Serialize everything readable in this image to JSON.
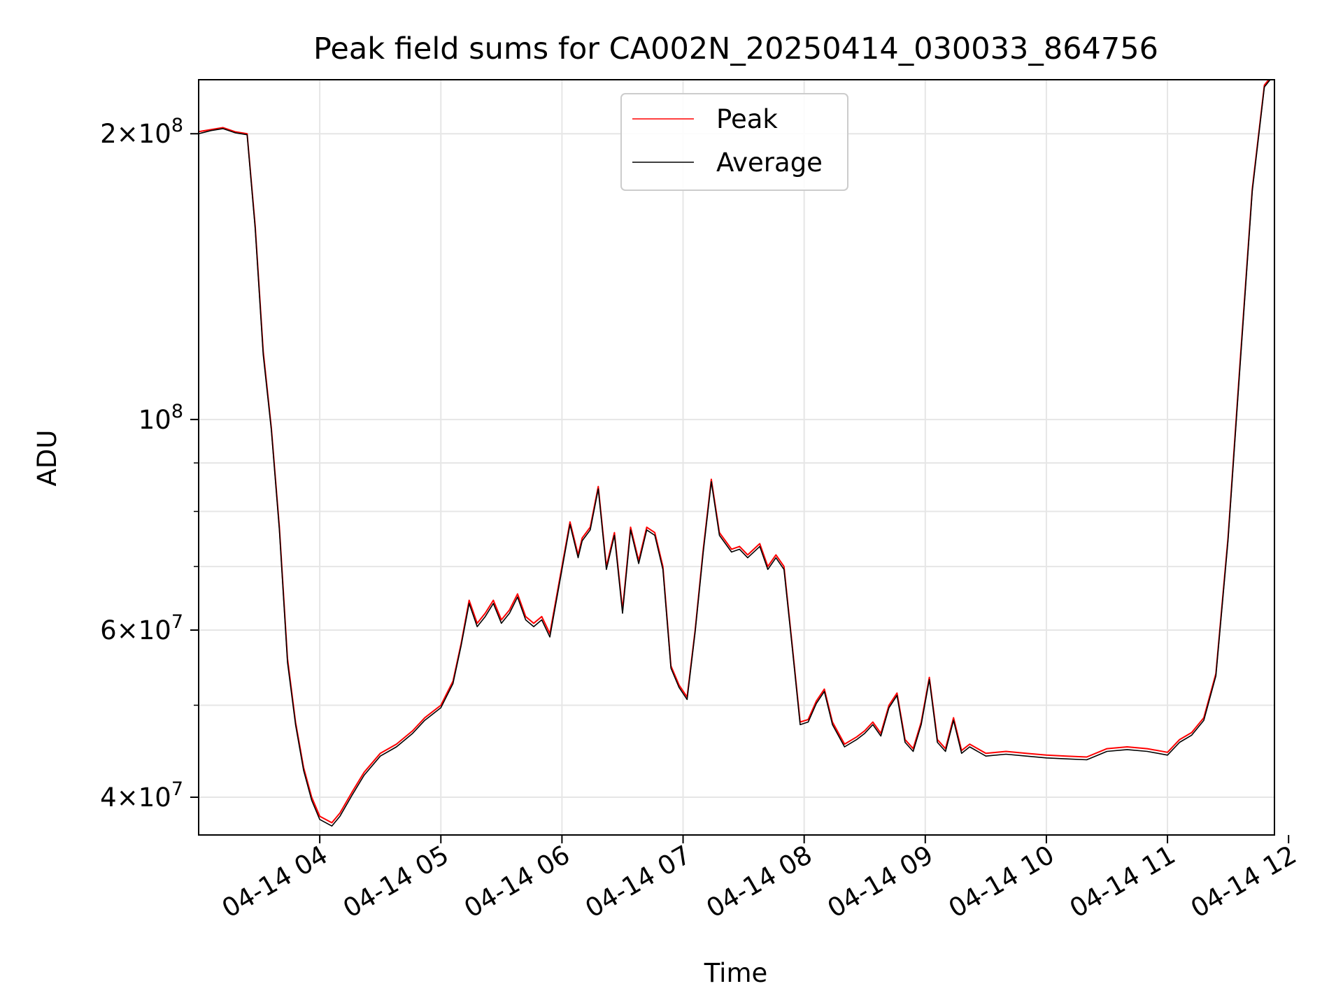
{
  "colors": {
    "peak": "#ff0000",
    "average": "#000000",
    "grid": "#e6e6e6",
    "frame": "#000000"
  },
  "chart_data": {
    "type": "line",
    "title": "Peak field sums for CA002N_20250414_030033_864756",
    "xlabel": "Time",
    "ylabel": "ADU",
    "y_scale": "log",
    "grid": true,
    "legend_placement": "top-center",
    "xlim": [
      "2025-04-14 03:00",
      "2025-04-14 11:53"
    ],
    "ylim": [
      36500000,
      228000000
    ],
    "x_ticks": [
      {
        "value": "2025-04-14 04:00",
        "label": "04-14 04"
      },
      {
        "value": "2025-04-14 05:00",
        "label": "04-14 05"
      },
      {
        "value": "2025-04-14 06:00",
        "label": "04-14 06"
      },
      {
        "value": "2025-04-14 07:00",
        "label": "04-14 07"
      },
      {
        "value": "2025-04-14 08:00",
        "label": "04-14 08"
      },
      {
        "value": "2025-04-14 09:00",
        "label": "04-14 09"
      },
      {
        "value": "2025-04-14 10:00",
        "label": "04-14 10"
      },
      {
        "value": "2025-04-14 11:00",
        "label": "04-14 11"
      },
      {
        "value": "2025-04-14 12:00",
        "label": "04-14 12"
      }
    ],
    "y_major_ticks": [
      {
        "value": 40000000,
        "mant": "4",
        "exp": "7"
      },
      {
        "value": 60000000,
        "mant": "6",
        "exp": "7"
      },
      {
        "value": 100000000,
        "mant": "",
        "exp": "8"
      },
      {
        "value": 200000000,
        "mant": "2",
        "exp": "8"
      }
    ],
    "y_minor_ticks": [
      50000000,
      70000000,
      80000000,
      90000000
    ],
    "series": [
      {
        "name": "Peak",
        "color": "#ff0000",
        "x": [
          "2025-04-14 03:00",
          "2025-04-14 03:06",
          "2025-04-14 03:12",
          "2025-04-14 03:18",
          "2025-04-14 03:24",
          "2025-04-14 03:28",
          "2025-04-14 03:32",
          "2025-04-14 03:36",
          "2025-04-14 03:40",
          "2025-04-14 03:44",
          "2025-04-14 03:48",
          "2025-04-14 03:52",
          "2025-04-14 03:56",
          "2025-04-14 04:00",
          "2025-04-14 04:06",
          "2025-04-14 04:10",
          "2025-04-14 04:16",
          "2025-04-14 04:22",
          "2025-04-14 04:30",
          "2025-04-14 04:38",
          "2025-04-14 04:46",
          "2025-04-14 04:52",
          "2025-04-14 05:00",
          "2025-04-14 05:06",
          "2025-04-14 05:10",
          "2025-04-14 05:14",
          "2025-04-14 05:18",
          "2025-04-14 05:22",
          "2025-04-14 05:26",
          "2025-04-14 05:30",
          "2025-04-14 05:34",
          "2025-04-14 05:38",
          "2025-04-14 05:42",
          "2025-04-14 05:46",
          "2025-04-14 05:50",
          "2025-04-14 05:54",
          "2025-04-14 06:00",
          "2025-04-14 06:04",
          "2025-04-14 06:08",
          "2025-04-14 06:10",
          "2025-04-14 06:14",
          "2025-04-14 06:18",
          "2025-04-14 06:22",
          "2025-04-14 06:26",
          "2025-04-14 06:30",
          "2025-04-14 06:34",
          "2025-04-14 06:38",
          "2025-04-14 06:42",
          "2025-04-14 06:46",
          "2025-04-14 06:50",
          "2025-04-14 06:54",
          "2025-04-14 06:58",
          "2025-04-14 07:02",
          "2025-04-14 07:06",
          "2025-04-14 07:10",
          "2025-04-14 07:14",
          "2025-04-14 07:18",
          "2025-04-14 07:24",
          "2025-04-14 07:28",
          "2025-04-14 07:32",
          "2025-04-14 07:38",
          "2025-04-14 07:42",
          "2025-04-14 07:46",
          "2025-04-14 07:50",
          "2025-04-14 07:54",
          "2025-04-14 07:58",
          "2025-04-14 08:02",
          "2025-04-14 08:06",
          "2025-04-14 08:10",
          "2025-04-14 08:14",
          "2025-04-14 08:20",
          "2025-04-14 08:26",
          "2025-04-14 08:30",
          "2025-04-14 08:34",
          "2025-04-14 08:38",
          "2025-04-14 08:42",
          "2025-04-14 08:46",
          "2025-04-14 08:50",
          "2025-04-14 08:54",
          "2025-04-14 08:58",
          "2025-04-14 09:02",
          "2025-04-14 09:06",
          "2025-04-14 09:10",
          "2025-04-14 09:14",
          "2025-04-14 09:18",
          "2025-04-14 09:22",
          "2025-04-14 09:30",
          "2025-04-14 09:40",
          "2025-04-14 09:50",
          "2025-04-14 10:00",
          "2025-04-14 10:10",
          "2025-04-14 10:20",
          "2025-04-14 10:30",
          "2025-04-14 10:40",
          "2025-04-14 10:50",
          "2025-04-14 11:00",
          "2025-04-14 11:06",
          "2025-04-14 11:12",
          "2025-04-14 11:18",
          "2025-04-14 11:24",
          "2025-04-14 11:30",
          "2025-04-14 11:36",
          "2025-04-14 11:42",
          "2025-04-14 11:48",
          "2025-04-14 11:53"
        ],
        "y": [
          201000000,
          202000000,
          203000000,
          201000000,
          200000000,
          160000000,
          118000000,
          98000000,
          77000000,
          56000000,
          48000000,
          43000000,
          40000000,
          38200000,
          37600000,
          38500000,
          40500000,
          42500000,
          44500000,
          45500000,
          47000000,
          48500000,
          50000000,
          53000000,
          58000000,
          64500000,
          61000000,
          62500000,
          64500000,
          61500000,
          63000000,
          65500000,
          62000000,
          61000000,
          62000000,
          59500000,
          70000000,
          78000000,
          72000000,
          75000000,
          77000000,
          85000000,
          70000000,
          76000000,
          63000000,
          77000000,
          71000000,
          77000000,
          76000000,
          70000000,
          55000000,
          52500000,
          51000000,
          60000000,
          73000000,
          86500000,
          76000000,
          73000000,
          73500000,
          72000000,
          74000000,
          70000000,
          72000000,
          70000000,
          58000000,
          48000000,
          48300000,
          50500000,
          52000000,
          48000000,
          45500000,
          46300000,
          47000000,
          48000000,
          46700000,
          50000000,
          51500000,
          46000000,
          45000000,
          48000000,
          53500000,
          46000000,
          45000000,
          48500000,
          44800000,
          45500000,
          44500000,
          44700000,
          44500000,
          44300000,
          44200000,
          44100000,
          45000000,
          45200000,
          45000000,
          44600000,
          46000000,
          46800000,
          48500000,
          54000000,
          75000000,
          115000000,
          175000000,
          225000000,
          232000000
        ]
      },
      {
        "name": "Average",
        "color": "#000000",
        "x": [
          "2025-04-14 03:00",
          "2025-04-14 03:06",
          "2025-04-14 03:12",
          "2025-04-14 03:18",
          "2025-04-14 03:24",
          "2025-04-14 03:28",
          "2025-04-14 03:32",
          "2025-04-14 03:36",
          "2025-04-14 03:40",
          "2025-04-14 03:44",
          "2025-04-14 03:48",
          "2025-04-14 03:52",
          "2025-04-14 03:56",
          "2025-04-14 04:00",
          "2025-04-14 04:06",
          "2025-04-14 04:10",
          "2025-04-14 04:16",
          "2025-04-14 04:22",
          "2025-04-14 04:30",
          "2025-04-14 04:38",
          "2025-04-14 04:46",
          "2025-04-14 04:52",
          "2025-04-14 05:00",
          "2025-04-14 05:06",
          "2025-04-14 05:10",
          "2025-04-14 05:14",
          "2025-04-14 05:18",
          "2025-04-14 05:22",
          "2025-04-14 05:26",
          "2025-04-14 05:30",
          "2025-04-14 05:34",
          "2025-04-14 05:38",
          "2025-04-14 05:42",
          "2025-04-14 05:46",
          "2025-04-14 05:50",
          "2025-04-14 05:54",
          "2025-04-14 06:00",
          "2025-04-14 06:04",
          "2025-04-14 06:08",
          "2025-04-14 06:10",
          "2025-04-14 06:14",
          "2025-04-14 06:18",
          "2025-04-14 06:22",
          "2025-04-14 06:26",
          "2025-04-14 06:30",
          "2025-04-14 06:34",
          "2025-04-14 06:38",
          "2025-04-14 06:42",
          "2025-04-14 06:46",
          "2025-04-14 06:50",
          "2025-04-14 06:54",
          "2025-04-14 06:58",
          "2025-04-14 07:02",
          "2025-04-14 07:06",
          "2025-04-14 07:10",
          "2025-04-14 07:14",
          "2025-04-14 07:18",
          "2025-04-14 07:24",
          "2025-04-14 07:28",
          "2025-04-14 07:32",
          "2025-04-14 07:38",
          "2025-04-14 07:42",
          "2025-04-14 07:46",
          "2025-04-14 07:50",
          "2025-04-14 07:54",
          "2025-04-14 07:58",
          "2025-04-14 08:02",
          "2025-04-14 08:06",
          "2025-04-14 08:10",
          "2025-04-14 08:14",
          "2025-04-14 08:20",
          "2025-04-14 08:26",
          "2025-04-14 08:30",
          "2025-04-14 08:34",
          "2025-04-14 08:38",
          "2025-04-14 08:42",
          "2025-04-14 08:46",
          "2025-04-14 08:50",
          "2025-04-14 08:54",
          "2025-04-14 08:58",
          "2025-04-14 09:02",
          "2025-04-14 09:06",
          "2025-04-14 09:10",
          "2025-04-14 09:14",
          "2025-04-14 09:18",
          "2025-04-14 09:22",
          "2025-04-14 09:30",
          "2025-04-14 09:40",
          "2025-04-14 09:50",
          "2025-04-14 10:00",
          "2025-04-14 10:10",
          "2025-04-14 10:20",
          "2025-04-14 10:30",
          "2025-04-14 10:40",
          "2025-04-14 10:50",
          "2025-04-14 11:00",
          "2025-04-14 11:06",
          "2025-04-14 11:12",
          "2025-04-14 11:18",
          "2025-04-14 11:24",
          "2025-04-14 11:30",
          "2025-04-14 11:36",
          "2025-04-14 11:42",
          "2025-04-14 11:48",
          "2025-04-14 11:53"
        ],
        "y": [
          200000000,
          201500000,
          202500000,
          200500000,
          199500000,
          159000000,
          117000000,
          97500000,
          76500000,
          55500000,
          47700000,
          42700000,
          39700000,
          37900000,
          37300000,
          38200000,
          40200000,
          42200000,
          44200000,
          45200000,
          46700000,
          48200000,
          49700000,
          52700000,
          57700000,
          64000000,
          60500000,
          62000000,
          64000000,
          61000000,
          62500000,
          65000000,
          61500000,
          60500000,
          61500000,
          59000000,
          69500000,
          77500000,
          71500000,
          74500000,
          76500000,
          84500000,
          69500000,
          75500000,
          62500000,
          76500000,
          70500000,
          76500000,
          75500000,
          69500000,
          54700000,
          52200000,
          50700000,
          59700000,
          72500000,
          86000000,
          75500000,
          72500000,
          73000000,
          71500000,
          73500000,
          69500000,
          71500000,
          69500000,
          57700000,
          47700000,
          48000000,
          50200000,
          51700000,
          47700000,
          45200000,
          46000000,
          46700000,
          47700000,
          46400000,
          49700000,
          51200000,
          45700000,
          44700000,
          47700000,
          53200000,
          45700000,
          44700000,
          48200000,
          44500000,
          45200000,
          44200000,
          44400000,
          44200000,
          44000000,
          43900000,
          43800000,
          44700000,
          44900000,
          44700000,
          44300000,
          45700000,
          46500000,
          48200000,
          53700000,
          74500000,
          114000000,
          174000000,
          224000000,
          231000000
        ]
      }
    ]
  }
}
